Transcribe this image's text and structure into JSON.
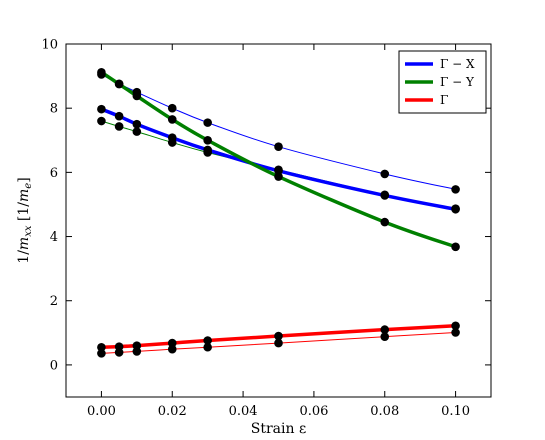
{
  "chart_data": {
    "type": "line",
    "xlabel": "Strain ε",
    "ylabel": "1/m_xx [1/m_e]",
    "ylabel_parts": {
      "pre": "1/",
      "m": "m",
      "sub": "xx",
      "mid": " [1/",
      "m2": "m",
      "sub2": "e",
      "post": "]"
    },
    "xlim": [
      -0.01,
      0.11
    ],
    "ylim": [
      -1,
      10
    ],
    "xticks": [
      0.0,
      0.02,
      0.04,
      0.06,
      0.08,
      0.1
    ],
    "xtick_labels": [
      "0.00",
      "0.02",
      "0.04",
      "0.06",
      "0.08",
      "0.10"
    ],
    "yticks": [
      0,
      2,
      4,
      6,
      8,
      10
    ],
    "ytick_labels": [
      "0",
      "2",
      "4",
      "6",
      "8",
      "10"
    ],
    "grid": false,
    "legend_placement": "top-right",
    "x": [
      0.0,
      0.005,
      0.01,
      0.02,
      0.03,
      0.05,
      0.08,
      0.1
    ],
    "series": [
      {
        "name": "Γ − X",
        "color": "#0000ff",
        "weight": "thick",
        "values": [
          7.97,
          7.75,
          7.5,
          7.08,
          6.7,
          6.05,
          5.28,
          4.85
        ]
      },
      {
        "color": "#0000ff",
        "weight": "thin",
        "values": [
          9.05,
          8.76,
          8.5,
          8.0,
          7.55,
          6.8,
          5.95,
          5.47
        ]
      },
      {
        "name": "Γ − Y",
        "color": "#008000",
        "weight": "thick",
        "values": [
          9.12,
          8.75,
          8.38,
          7.65,
          7.0,
          5.87,
          4.45,
          3.68
        ]
      },
      {
        "color": "#008000",
        "weight": "thin",
        "values": [
          7.6,
          7.43,
          7.27,
          6.93,
          6.62,
          6.08,
          5.3,
          4.87
        ]
      },
      {
        "name": "Γ",
        "color": "#ff0000",
        "weight": "thick",
        "values": [
          0.55,
          0.57,
          0.6,
          0.68,
          0.76,
          0.9,
          1.1,
          1.22
        ]
      },
      {
        "color": "#ff0000",
        "weight": "thin",
        "values": [
          0.36,
          0.39,
          0.42,
          0.49,
          0.55,
          0.68,
          0.88,
          1.01
        ]
      }
    ],
    "legend": [
      {
        "label": "Γ − X",
        "color": "#0000ff"
      },
      {
        "label": "Γ − Y",
        "color": "#008000"
      },
      {
        "label": "Γ",
        "color": "#ff0000"
      }
    ]
  }
}
